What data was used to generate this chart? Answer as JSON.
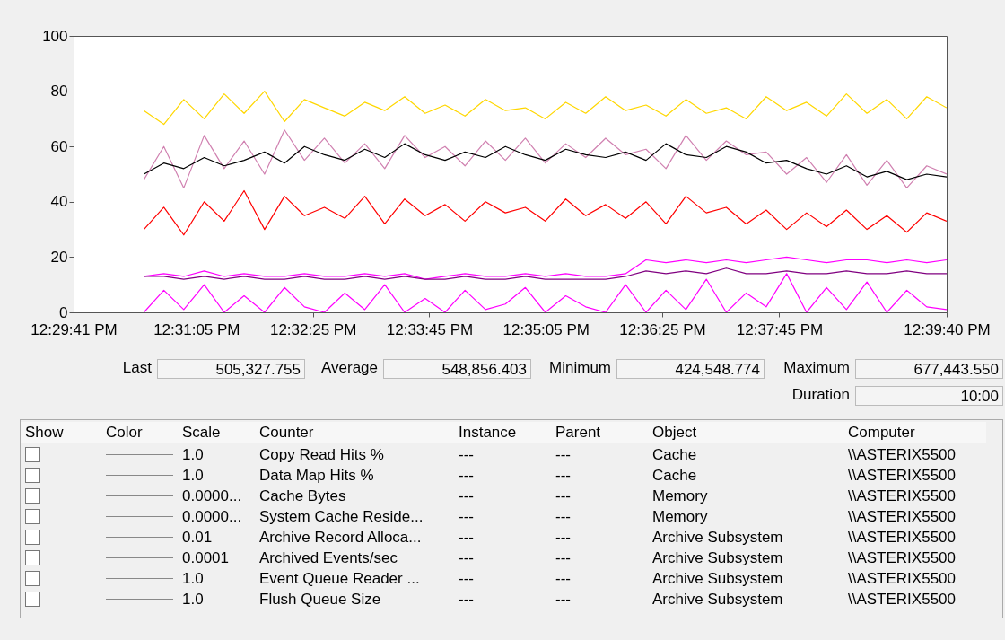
{
  "chart_data": {
    "type": "line",
    "x": [
      12.5081,
      12.5119,
      12.5157,
      12.5196,
      12.5234,
      12.5272,
      12.5311,
      12.5349,
      12.5387,
      12.5425,
      12.5464,
      12.5502,
      12.554,
      12.5578,
      12.5617,
      12.5655,
      12.5693,
      12.5732,
      12.577,
      12.5808,
      12.5846,
      12.5885,
      12.5923,
      12.5961,
      12.5999,
      12.6038,
      12.6076,
      12.6114,
      12.6153,
      12.6191,
      12.6229,
      12.6267,
      12.6306,
      12.6344,
      12.6382,
      12.642,
      12.6459,
      12.6497,
      12.6535,
      12.6573,
      12.6611
    ],
    "series": [
      {
        "color": "#ffd700",
        "values": [
          73,
          68,
          77,
          70,
          79,
          72,
          80,
          69,
          77,
          74,
          71,
          76,
          73,
          78,
          72,
          75,
          71,
          77,
          73,
          74,
          70,
          76,
          72,
          78,
          73,
          75,
          71,
          77,
          72,
          74,
          70,
          78,
          73,
          76,
          71,
          79,
          72,
          77,
          70,
          78,
          74
        ]
      },
      {
        "color": "#d080b0",
        "values": [
          48,
          60,
          45,
          64,
          52,
          62,
          50,
          66,
          55,
          63,
          54,
          61,
          52,
          64,
          56,
          60,
          53,
          62,
          55,
          63,
          54,
          61,
          56,
          63,
          57,
          59,
          52,
          64,
          55,
          62,
          57,
          58,
          50,
          56,
          47,
          57,
          46,
          55,
          45,
          53,
          50
        ]
      },
      {
        "color": "#000000",
        "values": [
          50,
          54,
          52,
          56,
          53,
          55,
          58,
          54,
          60,
          57,
          55,
          59,
          56,
          61,
          57,
          55,
          58,
          56,
          60,
          57,
          55,
          59,
          57,
          56,
          58,
          55,
          61,
          57,
          56,
          60,
          58,
          54,
          55,
          52,
          50,
          53,
          49,
          51,
          48,
          50,
          49
        ]
      },
      {
        "color": "#ff0000",
        "values": [
          30,
          38,
          28,
          40,
          33,
          44,
          30,
          42,
          35,
          38,
          34,
          42,
          32,
          41,
          35,
          39,
          33,
          40,
          36,
          38,
          33,
          41,
          35,
          39,
          34,
          40,
          32,
          42,
          36,
          38,
          32,
          37,
          30,
          36,
          31,
          37,
          30,
          35,
          29,
          36,
          33
        ]
      },
      {
        "color": "#ff00ff",
        "values": [
          13,
          14,
          13,
          15,
          13,
          14,
          13,
          13,
          14,
          13,
          13,
          14,
          13,
          14,
          12,
          13,
          14,
          13,
          13,
          14,
          13,
          14,
          13,
          13,
          14,
          19,
          18,
          19,
          18,
          19,
          18,
          19,
          20,
          19,
          18,
          19,
          19,
          18,
          19,
          18,
          19
        ]
      },
      {
        "color": "#800080",
        "values": [
          13,
          13,
          12,
          13,
          12,
          13,
          12,
          12,
          13,
          12,
          12,
          13,
          12,
          13,
          12,
          12,
          13,
          12,
          12,
          13,
          12,
          12,
          12,
          12,
          13,
          15,
          14,
          15,
          14,
          16,
          14,
          14,
          15,
          14,
          14,
          15,
          14,
          14,
          15,
          14,
          14
        ]
      },
      {
        "color": "#ff00ff",
        "values": [
          0,
          8,
          1,
          10,
          0,
          6,
          0,
          9,
          2,
          0,
          7,
          1,
          10,
          0,
          5,
          0,
          8,
          1,
          3,
          9,
          0,
          6,
          2,
          0,
          10,
          0,
          8,
          1,
          12,
          0,
          7,
          2,
          14,
          0,
          9,
          1,
          11,
          0,
          8,
          2,
          1
        ]
      }
    ],
    "xlim": [
      12.4947,
      12.6611
    ],
    "xticks": [
      {
        "value": 12.4947,
        "label": "12:29:41 PM"
      },
      {
        "value": 12.5181,
        "label": "12:31:05 PM"
      },
      {
        "value": 12.5403,
        "label": "12:32:25 PM"
      },
      {
        "value": 12.5625,
        "label": "12:33:45 PM"
      },
      {
        "value": 12.5847,
        "label": "12:35:05 PM"
      },
      {
        "value": 12.6069,
        "label": "12:36:25 PM"
      },
      {
        "value": 12.6292,
        "label": "12:37:45 PM"
      },
      {
        "value": 12.6611,
        "label": "12:39:40 PM"
      }
    ],
    "ylim": [
      0,
      100
    ],
    "yticks": [
      0,
      20,
      40,
      60,
      80,
      100
    ],
    "grid": false,
    "legend": false,
    "annotations": [
      "Last",
      "505,327.755",
      "Average",
      "548,856.403",
      "Minimum",
      "424,548.774",
      "Maximum",
      "677,443.550",
      "Duration",
      "10:00",
      "Show",
      "Color",
      "Scale",
      "Counter",
      "Instance",
      "Parent",
      "Object",
      "Computer",
      "1.0",
      "Copy Read Hits %",
      "---",
      "---",
      "Cache",
      "\\\\ASTERIX5500",
      "1.0",
      "Data Map Hits %",
      "---",
      "---",
      "Cache",
      "\\\\ASTERIX5500",
      "0.0000...",
      "Cache Bytes",
      "---",
      "---",
      "Memory",
      "\\\\ASTERIX5500",
      "0.0000...",
      "System Cache Reside...",
      "---",
      "---",
      "Memory",
      "\\\\ASTERIX5500",
      "0.01",
      "Archive Record Alloca...",
      "---",
      "---",
      "Archive Subsystem",
      "\\\\ASTERIX5500",
      "0.0001",
      "Archived Events/sec",
      "---",
      "---",
      "Archive Subsystem",
      "\\\\ASTERIX5500",
      "1.0",
      "Event Queue Reader ...",
      "---",
      "---",
      "Archive Subsystem",
      "\\\\ASTERIX5500",
      "1.0",
      "Flush Queue Size",
      "---",
      "---",
      "Archive Subsystem",
      "\\\\ASTERIX5500"
    ]
  }
}
